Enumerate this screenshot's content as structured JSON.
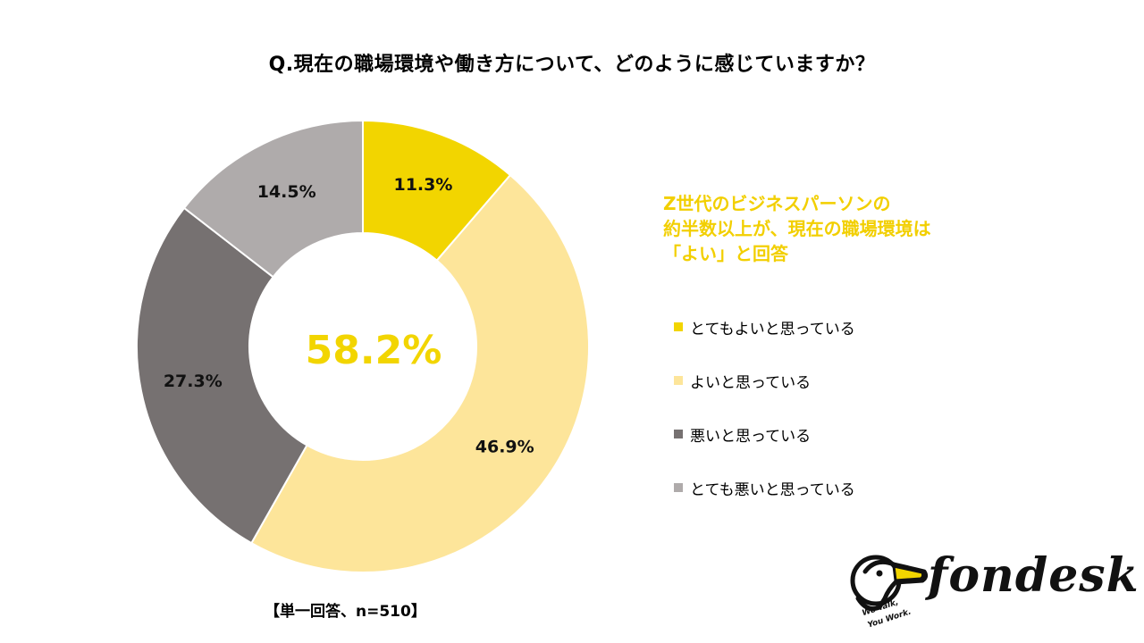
{
  "title": "Q.現在の職場環境や働き方について、どのように感じていますか？",
  "headline": {
    "line1": "Z世代のビジネスパーソンの",
    "line2": "約半数以上が、現在の職場環境は",
    "line3": "「よい」と回答"
  },
  "center_label": "58.2%",
  "sample_note": "【単一回答、n=510】",
  "colors": {
    "very_good": "#f2d500",
    "good": "#fde59a",
    "bad": "#767171",
    "very_bad": "#afabab",
    "headline": "#f2cf00"
  },
  "chart_data": {
    "type": "pie",
    "donut": true,
    "title": "Q.現在の職場環境や働き方について、どのように感じていますか？",
    "center_label": "58.2%",
    "start": "12 o'clock, clockwise",
    "slices": [
      {
        "label": "とてもよいと思っている",
        "value": 11.3,
        "display": "11.3%",
        "color": "#f2d500"
      },
      {
        "label": "よいと思っている",
        "value": 46.9,
        "display": "46.9%",
        "color": "#fde59a"
      },
      {
        "label": "悪いと思っている",
        "value": 27.3,
        "display": "27.3%",
        "color": "#767171"
      },
      {
        "label": "とても悪いと思っている",
        "value": 14.5,
        "display": "14.5%",
        "color": "#afabab"
      }
    ],
    "legend_position": "right"
  },
  "logo": {
    "wordmark": "fondesk",
    "tagline1": "We Talk,",
    "tagline2": "You Work."
  }
}
